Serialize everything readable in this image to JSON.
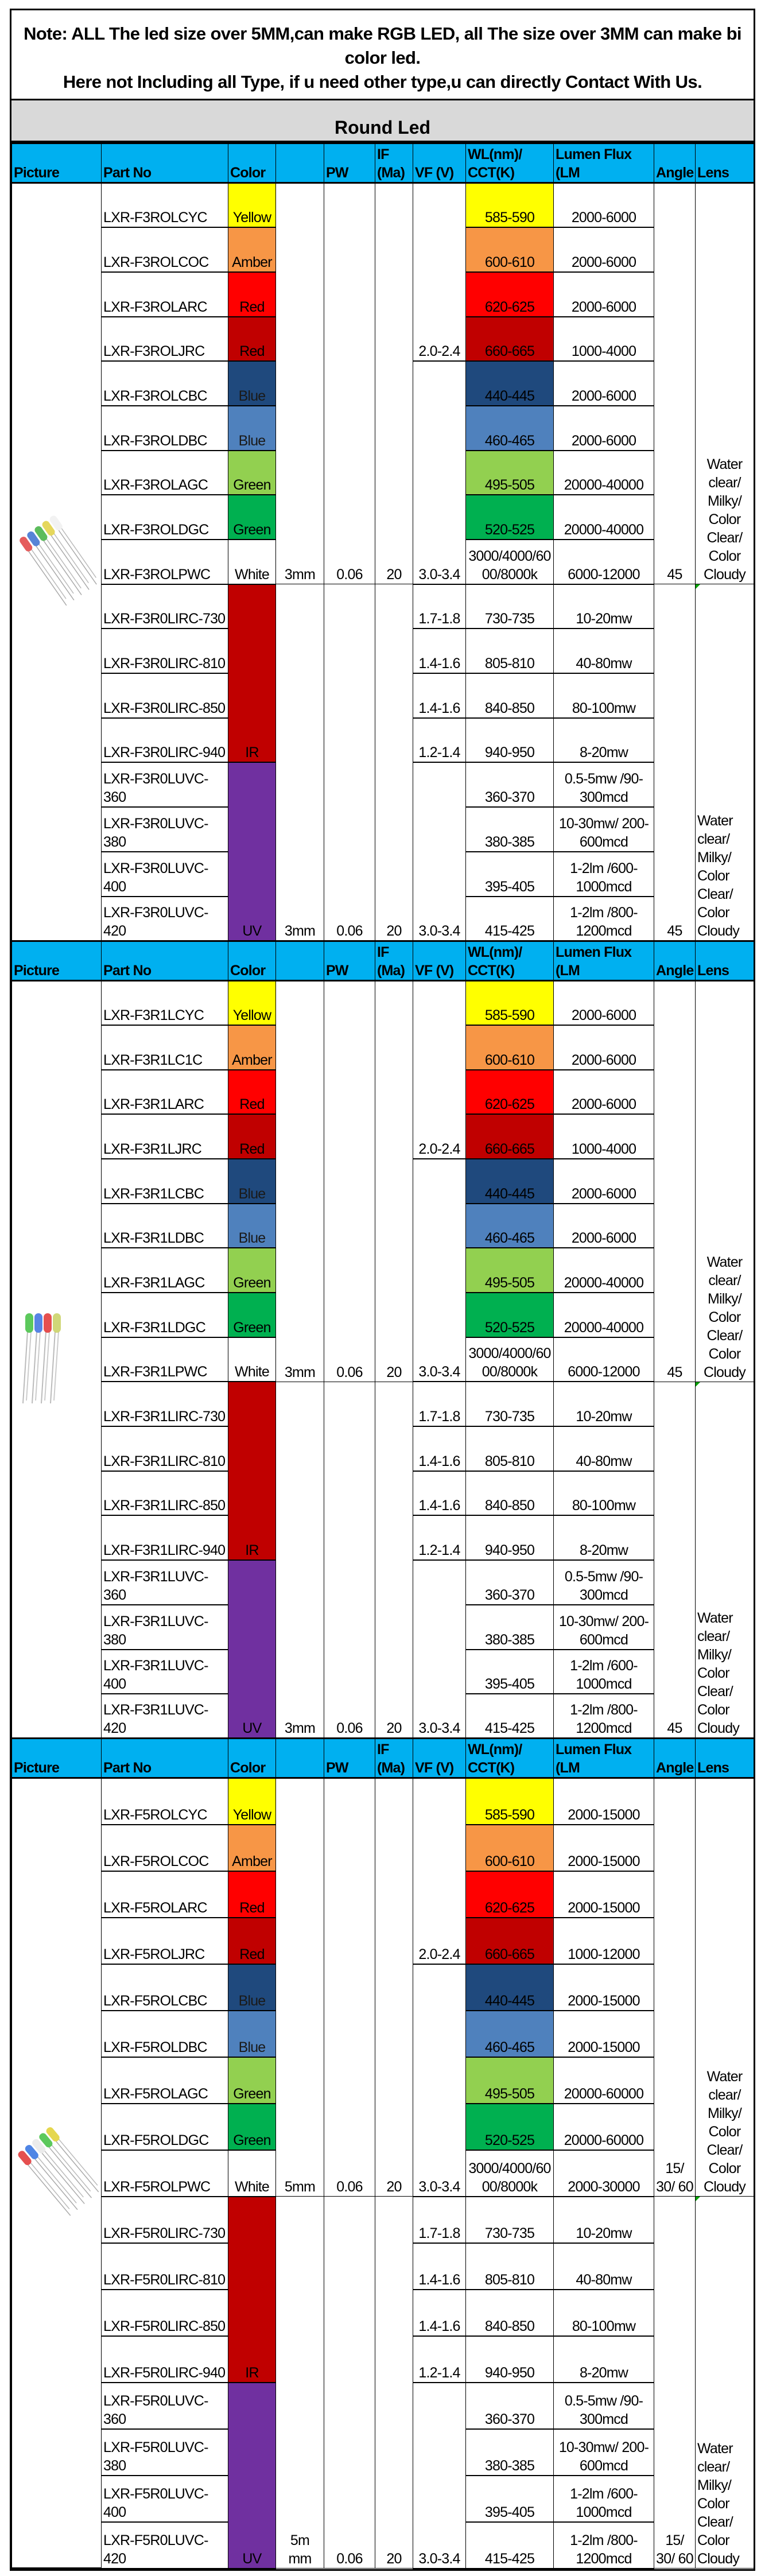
{
  "note": {
    "line1": "Note: ALL The led size over 5MM,can make RGB LED, all The size over 3MM can make bi color led.",
    "line2": "Here not Including all Type, if u need other type,u can directly Contact With Us."
  },
  "title": "Round Led",
  "headers": [
    "Picture",
    "Part No",
    "Color",
    "",
    "PW",
    "IF (Ma)",
    "VF (V)",
    "WL(nm)/ CCT(K)",
    "Lumen Flux (LM",
    "Angle",
    "Lens"
  ],
  "colors": {
    "header_bg": "#00b0f0",
    "title_bg": "#d9d9d9"
  },
  "sections": [
    {
      "picture_icon": "led-bundle-3mm-icon",
      "led_colors": [
        "#e04040",
        "#3a6fd0",
        "#40b040",
        "#e0d040",
        "#f0f0f0"
      ],
      "blocks": [
        {
          "size": "3mm",
          "pw": "0.06",
          "if": "20",
          "angle": "45",
          "lens": "Water clear/ Milky/ Color Clear/ Color Cloudy",
          "vf_groups": [
            {
              "rows": 4,
              "value": "2.0-2.4"
            },
            {
              "rows": 5,
              "value": "3.0-3.4"
            }
          ],
          "rows": [
            {
              "part_no": "LXR-F3ROLCYC",
              "color": "Yellow",
              "hex": "#ffff00",
              "wl": "585-590",
              "lumen": "2000-6000"
            },
            {
              "part_no": "LXR-F3ROLCOC",
              "color": "Amber",
              "hex": "#f79646",
              "wl": "600-610",
              "lumen": "2000-6000"
            },
            {
              "part_no": "LXR-F3ROLARC",
              "color": "Red",
              "hex": "#ff0000",
              "wl": "620-625",
              "lumen": "2000-6000"
            },
            {
              "part_no": "LXR-F3ROLJRC",
              "color": "Red",
              "hex": "#c00000",
              "wl": "660-665",
              "lumen": "1000-4000"
            },
            {
              "part_no": "LXR-F3ROLCBC",
              "color": "Blue",
              "hex": "#1f497d",
              "wl": "440-445",
              "lumen": "2000-6000"
            },
            {
              "part_no": "LXR-F3ROLDBC",
              "color": "Blue",
              "hex": "#4f81bd",
              "wl": "460-465",
              "lumen": "2000-6000"
            },
            {
              "part_no": "LXR-F3ROLAGC",
              "color": "Green",
              "hex": "#92d050",
              "wl": "495-505",
              "lumen": "20000-40000"
            },
            {
              "part_no": "LXR-F3ROLDGC",
              "color": "Green",
              "hex": "#00b050",
              "wl": "520-525",
              "lumen": "20000-40000"
            },
            {
              "part_no": "LXR-F3ROLPWC",
              "color": "White",
              "hex": "#ffffff",
              "wl": "3000/4000/6000/8000k",
              "lumen": "6000-12000"
            }
          ]
        },
        {
          "size": "3mm",
          "pw": "0.06",
          "if": "20",
          "angle": "45",
          "lens": "Water clear/ Milky/ Color Clear/ Color Cloudy",
          "color_groups": [
            {
              "rows": 4,
              "label": "IR",
              "hex": "#c00000"
            },
            {
              "rows": 4,
              "label": "UV",
              "hex": "#7030a0"
            }
          ],
          "vf_groups": [
            {
              "rows": 1,
              "value": "1.7-1.8"
            },
            {
              "rows": 1,
              "value": "1.4-1.6"
            },
            {
              "rows": 1,
              "value": "1.4-1.6"
            },
            {
              "rows": 1,
              "value": "1.2-1.4"
            },
            {
              "rows": 4,
              "value": "3.0-3.4"
            }
          ],
          "rows": [
            {
              "part_no": "LXR-F3R0LIRC-730",
              "wl": "730-735",
              "lumen": "10-20mw"
            },
            {
              "part_no": "LXR-F3R0LIRC-810",
              "wl": "805-810",
              "lumen": "40-80mw"
            },
            {
              "part_no": "LXR-F3R0LIRC-850",
              "wl": "840-850",
              "lumen": "80-100mw"
            },
            {
              "part_no": "LXR-F3R0LIRC-940",
              "wl": "940-950",
              "lumen": "8-20mw"
            },
            {
              "part_no": "LXR-F3R0LUVC-360",
              "wl": "360-370",
              "lumen": "0.5-5mw /90-300mcd"
            },
            {
              "part_no": "LXR-F3R0LUVC-380",
              "wl": "380-385",
              "lumen": "10-30mw/ 200-600mcd"
            },
            {
              "part_no": "LXR-F3R0LUVC-400",
              "wl": "395-405",
              "lumen": "1-2lm /600-1000mcd"
            },
            {
              "part_no": "LXR-F3R0LUVC-420",
              "wl": "415-425",
              "lumen": "1-2lm /800-1200mcd"
            }
          ]
        }
      ]
    },
    {
      "picture_icon": "led-row-3mm-icon",
      "led_colors": [
        "#40c040",
        "#3a6fe0",
        "#e03030",
        "#c8d060"
      ],
      "blocks": [
        {
          "size": "3mm",
          "pw": "0.06",
          "if": "20",
          "angle": "45",
          "lens": "Water clear/ Milky/ Color Clear/ Color Cloudy",
          "vf_groups": [
            {
              "rows": 4,
              "value": "2.0-2.4"
            },
            {
              "rows": 5,
              "value": "3.0-3.4"
            }
          ],
          "rows": [
            {
              "part_no": "LXR-F3R1LCYC",
              "color": "Yellow",
              "hex": "#ffff00",
              "wl": "585-590",
              "lumen": "2000-6000"
            },
            {
              "part_no": "LXR-F3R1LC1C",
              "color": "Amber",
              "hex": "#f79646",
              "wl": "600-610",
              "lumen": "2000-6000"
            },
            {
              "part_no": "LXR-F3R1LARC",
              "color": "Red",
              "hex": "#ff0000",
              "wl": "620-625",
              "lumen": "2000-6000"
            },
            {
              "part_no": "LXR-F3R1LJRC",
              "color": "Red",
              "hex": "#c00000",
              "wl": "660-665",
              "lumen": "1000-4000"
            },
            {
              "part_no": "LXR-F3R1LCBC",
              "color": "Blue",
              "hex": "#1f497d",
              "wl": "440-445",
              "lumen": "2000-6000"
            },
            {
              "part_no": "LXR-F3R1LDBC",
              "color": "Blue",
              "hex": "#4f81bd",
              "wl": "460-465",
              "lumen": "2000-6000"
            },
            {
              "part_no": "LXR-F3R1LAGC",
              "color": "Green",
              "hex": "#92d050",
              "wl": "495-505",
              "lumen": "20000-40000"
            },
            {
              "part_no": "LXR-F3R1LDGC",
              "color": "Green",
              "hex": "#00b050",
              "wl": "520-525",
              "lumen": "20000-40000"
            },
            {
              "part_no": "LXR-F3R1LPWC",
              "color": "White",
              "hex": "#ffffff",
              "wl": "3000/4000/6000/8000k",
              "lumen": "6000-12000"
            }
          ]
        },
        {
          "size": "3mm",
          "pw": "0.06",
          "if": "20",
          "angle": "45",
          "lens": "Water clear/ Milky/ Color Clear/ Color Cloudy",
          "color_groups": [
            {
              "rows": 4,
              "label": "IR",
              "hex": "#c00000"
            },
            {
              "rows": 4,
              "label": "UV",
              "hex": "#7030a0"
            }
          ],
          "vf_groups": [
            {
              "rows": 1,
              "value": "1.7-1.8"
            },
            {
              "rows": 1,
              "value": "1.4-1.6"
            },
            {
              "rows": 1,
              "value": "1.4-1.6"
            },
            {
              "rows": 1,
              "value": "1.2-1.4"
            },
            {
              "rows": 4,
              "value": "3.0-3.4"
            }
          ],
          "rows": [
            {
              "part_no": "LXR-F3R1LIRC-730",
              "wl": "730-735",
              "lumen": "10-20mw"
            },
            {
              "part_no": "LXR-F3R1LIRC-810",
              "wl": "805-810",
              "lumen": "40-80mw"
            },
            {
              "part_no": "LXR-F3R1LIRC-850",
              "wl": "840-850",
              "lumen": "80-100mw"
            },
            {
              "part_no": "LXR-F3R1LIRC-940",
              "wl": "940-950",
              "lumen": "8-20mw"
            },
            {
              "part_no": "LXR-F3R1LUVC-360",
              "wl": "360-370",
              "lumen": "0.5-5mw /90-300mcd"
            },
            {
              "part_no": "LXR-F3R1LUVC-380",
              "wl": "380-385",
              "lumen": "10-30mw/ 200-600mcd"
            },
            {
              "part_no": "LXR-F3R1LUVC-400",
              "wl": "395-405",
              "lumen": "1-2lm /600-1000mcd"
            },
            {
              "part_no": "LXR-F3R1LUVC-420",
              "wl": "415-425",
              "lumen": "1-2lm /800-1200mcd"
            }
          ]
        }
      ]
    },
    {
      "picture_icon": "led-bundle-5mm-icon",
      "led_colors": [
        "#e03030",
        "#3070e0",
        "#e8e8e8",
        "#40c040",
        "#e0d030"
      ],
      "blocks": [
        {
          "size": "5mm",
          "pw": "0.06",
          "if": "20",
          "angle": "15/ 30/ 60",
          "lens": "Water clear/ Milky/ Color Clear/ Color Cloudy",
          "vf_groups": [
            {
              "rows": 4,
              "value": "2.0-2.4"
            },
            {
              "rows": 5,
              "value": "3.0-3.4"
            }
          ],
          "rows": [
            {
              "part_no": "LXR-F5ROLCYC",
              "color": "Yellow",
              "hex": "#ffff00",
              "wl": "585-590",
              "lumen": "2000-15000"
            },
            {
              "part_no": "LXR-F5ROLCOC",
              "color": "Amber",
              "hex": "#f79646",
              "wl": "600-610",
              "lumen": "2000-15000"
            },
            {
              "part_no": "LXR-F5ROLARC",
              "color": "Red",
              "hex": "#ff0000",
              "wl": "620-625",
              "lumen": "2000-15000"
            },
            {
              "part_no": "LXR-F5ROLJRC",
              "color": "Red",
              "hex": "#c00000",
              "wl": "660-665",
              "lumen": "1000-12000"
            },
            {
              "part_no": "LXR-F5ROLCBC",
              "color": "Blue",
              "hex": "#1f497d",
              "wl": "440-445",
              "lumen": "2000-15000"
            },
            {
              "part_no": "LXR-F5ROLDBC",
              "color": "Blue",
              "hex": "#4f81bd",
              "wl": "460-465",
              "lumen": "2000-15000"
            },
            {
              "part_no": "LXR-F5ROLAGC",
              "color": "Green",
              "hex": "#92d050",
              "wl": "495-505",
              "lumen": "20000-60000"
            },
            {
              "part_no": "LXR-F5ROLDGC",
              "color": "Green",
              "hex": "#00b050",
              "wl": "520-525",
              "lumen": "20000-60000"
            },
            {
              "part_no": "LXR-F5ROLPWC",
              "color": "White",
              "hex": "#ffffff",
              "wl": "3000/4000/6000/8000k",
              "lumen": "2000-30000"
            }
          ]
        },
        {
          "size": "5mmm",
          "pw": "0.06",
          "if": "20",
          "angle": "15/ 30/ 60",
          "lens": "Water clear/ Milky/ Color Clear/ Color Cloudy",
          "color_groups": [
            {
              "rows": 4,
              "label": "IR",
              "hex": "#c00000"
            },
            {
              "rows": 4,
              "label": "UV",
              "hex": "#7030a0"
            }
          ],
          "vf_groups": [
            {
              "rows": 1,
              "value": "1.7-1.8"
            },
            {
              "rows": 1,
              "value": "1.4-1.6"
            },
            {
              "rows": 1,
              "value": "1.4-1.6"
            },
            {
              "rows": 1,
              "value": "1.2-1.4"
            },
            {
              "rows": 4,
              "value": "3.0-3.4"
            }
          ],
          "rows": [
            {
              "part_no": "LXR-F5R0LIRC-730",
              "wl": "730-735",
              "lumen": "10-20mw"
            },
            {
              "part_no": "LXR-F5R0LIRC-810",
              "wl": "805-810",
              "lumen": "40-80mw"
            },
            {
              "part_no": "LXR-F5R0LIRC-850",
              "wl": "840-850",
              "lumen": "80-100mw"
            },
            {
              "part_no": "LXR-F5R0LIRC-940",
              "wl": "940-950",
              "lumen": "8-20mw"
            },
            {
              "part_no": "LXR-F5R0LUVC-360",
              "wl": "360-370",
              "lumen": "0.5-5mw /90-300mcd"
            },
            {
              "part_no": "LXR-F5R0LUVC-380",
              "wl": "380-385",
              "lumen": "10-30mw/ 200-600mcd"
            },
            {
              "part_no": "LXR-F5R0LUVC-400",
              "wl": "395-405",
              "lumen": "1-2lm /600-1000mcd"
            },
            {
              "part_no": "LXR-F5R0LUVC-420",
              "wl": "415-425",
              "lumen": "1-2lm /800-1200mcd"
            }
          ]
        }
      ]
    }
  ]
}
